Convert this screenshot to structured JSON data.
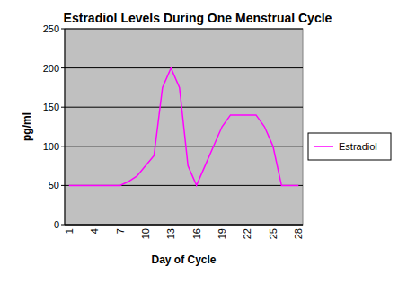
{
  "chart_data": {
    "type": "line",
    "title": "Estradiol Levels During One Menstrual Cycle",
    "x_label": "Day of Cycle",
    "y_label": "pg/ml",
    "categories": [
      1,
      null,
      null,
      4,
      null,
      null,
      7,
      null,
      null,
      10,
      null,
      null,
      13,
      null,
      null,
      16,
      null,
      null,
      19,
      null,
      null,
      22,
      null,
      null,
      25,
      null,
      null,
      28
    ],
    "series": [
      {
        "name": "Estradiol",
        "color": "#ff00ff",
        "values": [
          50,
          50,
          50,
          50,
          50,
          50,
          50,
          55,
          62,
          75,
          88,
          175,
          200,
          175,
          75,
          50,
          75,
          100,
          125,
          140,
          140,
          140,
          140,
          125,
          100,
          50,
          50,
          50
        ]
      }
    ],
    "ylim": [
      0,
      250
    ],
    "yticks": [
      0,
      50,
      100,
      150,
      200,
      250
    ],
    "grid": true,
    "legend": "right"
  }
}
